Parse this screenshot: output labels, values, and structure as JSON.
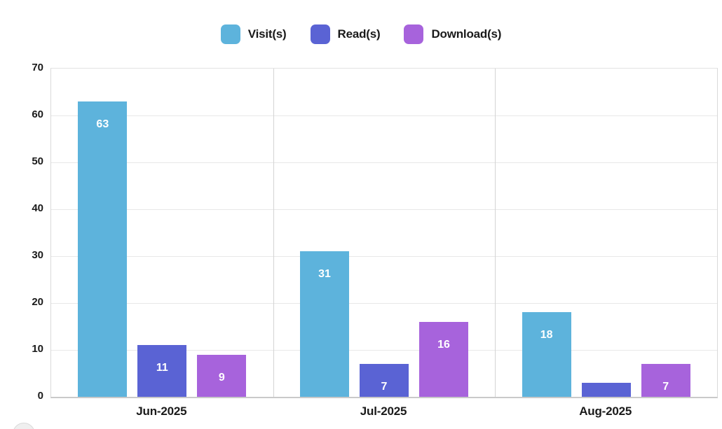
{
  "chart_data": {
    "type": "bar",
    "title": "",
    "categories": [
      "Jun-2025",
      "Jul-2025",
      "Aug-2025"
    ],
    "series": [
      {
        "name": "Visit(s)",
        "color": "#5DB3DC",
        "values": [
          63,
          31,
          18
        ],
        "labels": [
          "63",
          "31",
          "18"
        ]
      },
      {
        "name": "Read(s)",
        "color": "#5A63D4",
        "values": [
          11,
          7,
          3
        ],
        "labels": [
          "11",
          "7",
          ""
        ]
      },
      {
        "name": "Download(s)",
        "color": "#A763DC",
        "values": [
          9,
          16,
          7
        ],
        "labels": [
          "9",
          "16",
          "7"
        ]
      }
    ],
    "ylim": [
      0,
      70
    ],
    "yticks": [
      0,
      10,
      20,
      30,
      40,
      50,
      60,
      70
    ],
    "grid": true,
    "legend_position": "top",
    "bar_label_color": "#ffffff",
    "xlabel": "",
    "ylabel": ""
  },
  "colors": {
    "background": "#ffffff",
    "grid_horizontal": "#e8e8e8",
    "grid_vertical": "#d4d4d4",
    "axis_text": "#1a1a1a"
  }
}
